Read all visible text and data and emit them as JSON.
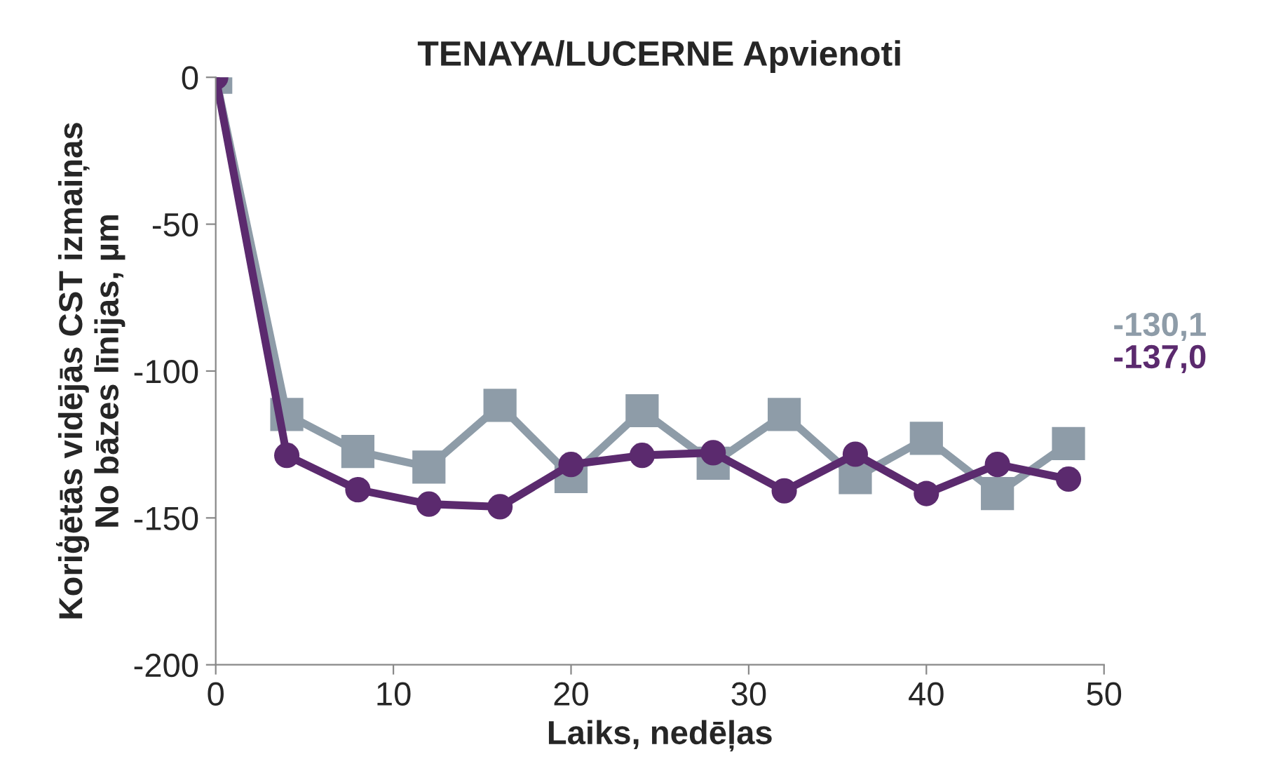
{
  "chart_data": {
    "type": "line",
    "title": "TENAYA/LUCERNE Apvienoti",
    "xlabel": "Laiks, nedēļas",
    "ylabel": "Koriģētās vidējās CST izmaiņas\nNo bāzes līnijas, µm",
    "x": [
      0,
      4,
      8,
      12,
      16,
      20,
      24,
      28,
      32,
      36,
      40,
      44,
      48
    ],
    "series": [
      {
        "color": "#8e9ca8",
        "marker": "square",
        "values": [
          0,
          -114.8,
          -127.4,
          -132.7,
          -111.7,
          -135.9,
          -113.5,
          -131.4,
          -114.8,
          -136.3,
          -122.9,
          -141.7,
          -124.7
        ]
      },
      {
        "color": "#5b2a6e",
        "marker": "circle",
        "values": [
          0,
          -128.7,
          -140.4,
          -145.3,
          -146.2,
          -131.8,
          -128.7,
          -127.8,
          -140.8,
          -128.3,
          -141.7,
          -131.8,
          -136.8
        ]
      }
    ],
    "annotations": [
      "-130,1",
      "-137,0"
    ],
    "xlim": [
      0,
      50
    ],
    "xticks": [
      0,
      10,
      20,
      30,
      40,
      50
    ],
    "ylim": [
      -200,
      0
    ],
    "yticks": [
      -200,
      -150,
      -100,
      -50,
      0
    ],
    "grid": false,
    "legend": false,
    "line_style": "solid"
  }
}
